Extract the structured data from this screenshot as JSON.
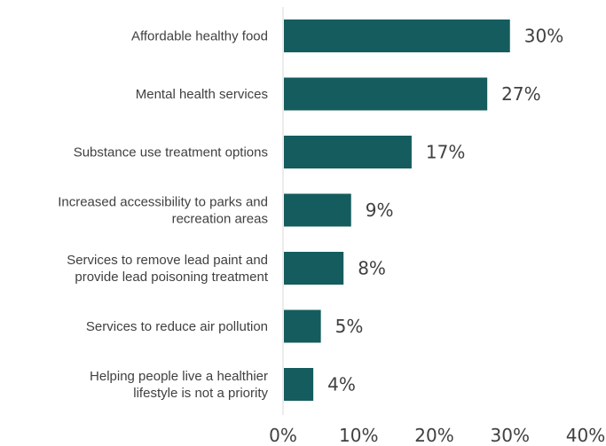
{
  "chart_data": {
    "type": "bar",
    "orientation": "horizontal",
    "categories": [
      [
        "Affordable healthy food"
      ],
      [
        "Mental health services"
      ],
      [
        "Substance use treatment options"
      ],
      [
        "Increased accessibility to parks and",
        "recreation areas"
      ],
      [
        "Services to remove lead paint and",
        "provide lead poisoning treatment"
      ],
      [
        "Services to reduce air pollution"
      ],
      [
        "Helping people live a healthier",
        "lifestyle is not a priority"
      ]
    ],
    "values": [
      30,
      27,
      17,
      9,
      8,
      5,
      4
    ],
    "value_labels": [
      "30%",
      "27%",
      "17%",
      "9%",
      "8%",
      "5%",
      "4%"
    ],
    "xlim": [
      0,
      40
    ],
    "x_ticks": [
      "0%",
      "10%",
      "20%",
      "30%",
      "40%"
    ],
    "bar_color": "#145c5e",
    "grid": false
  }
}
